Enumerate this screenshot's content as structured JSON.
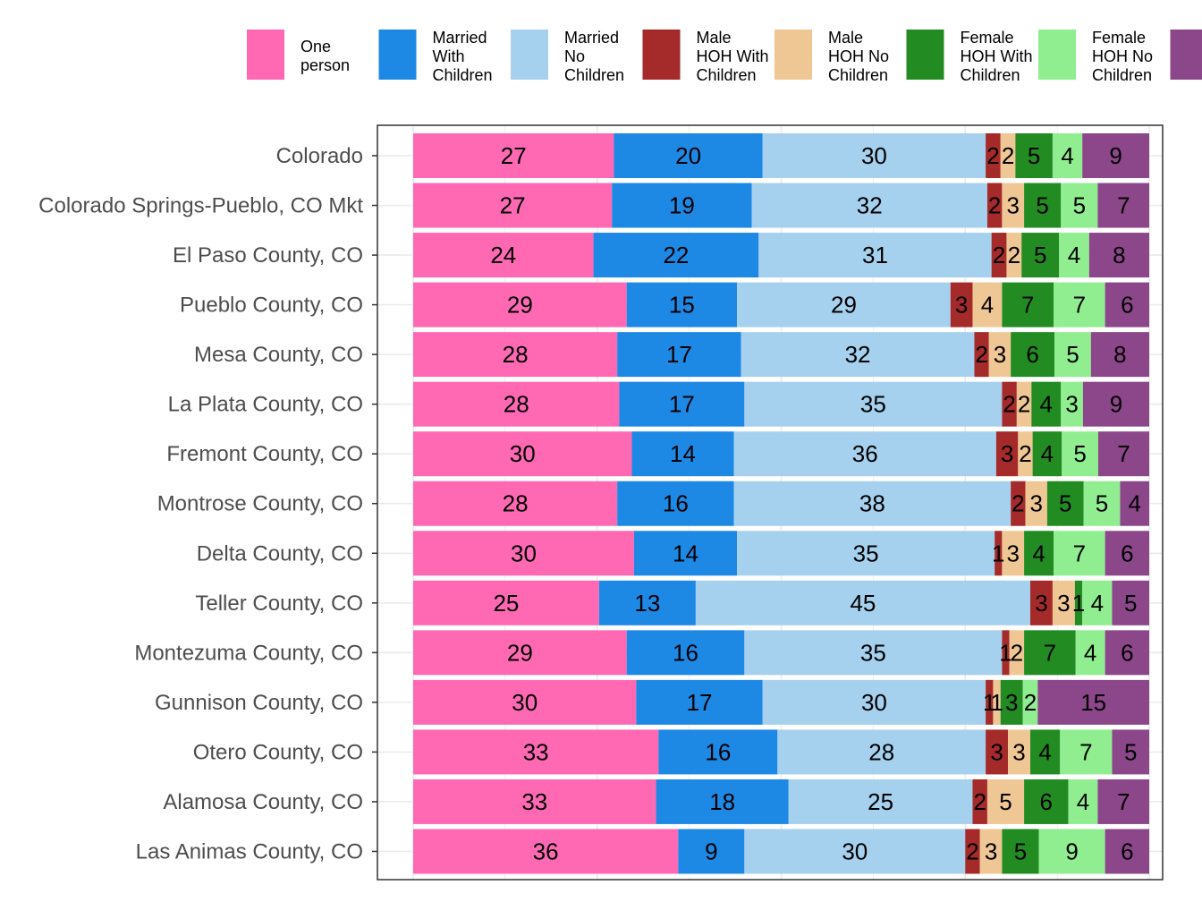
{
  "chart_data": {
    "type": "bar",
    "orientation": "horizontal",
    "stacked": true,
    "legend_position": "top",
    "grid": true,
    "categories": [
      "Colorado",
      "Colorado Springs-Pueblo, CO Mkt",
      "El Paso County, CO",
      "Pueblo County, CO",
      "Mesa County, CO",
      "La Plata County, CO",
      "Fremont County, CO",
      "Montrose County, CO",
      "Delta County, CO",
      "Teller County, CO",
      "Montezuma County, CO",
      "Gunnison County, CO",
      "Otero County, CO",
      "Alamosa County, CO",
      "Las Animas County, CO"
    ],
    "series": [
      {
        "name": "One person",
        "legend_lines": [
          "One",
          "person"
        ],
        "color": "#ff69b4",
        "values": [
          27,
          27,
          24,
          29,
          28,
          28,
          30,
          28,
          30,
          25,
          29,
          30,
          33,
          33,
          36
        ]
      },
      {
        "name": "Married With Children",
        "legend_lines": [
          "Married",
          "With",
          "Children"
        ],
        "color": "#1e88e5",
        "values": [
          20,
          19,
          22,
          15,
          17,
          17,
          14,
          16,
          14,
          13,
          16,
          17,
          16,
          18,
          9
        ]
      },
      {
        "name": "Married No Children",
        "legend_lines": [
          "Married",
          "No",
          "Children"
        ],
        "color": "#a6d1ee",
        "values": [
          30,
          32,
          31,
          29,
          32,
          35,
          36,
          38,
          35,
          45,
          35,
          30,
          28,
          25,
          30
        ]
      },
      {
        "name": "Male HOH With Children",
        "legend_lines": [
          "Male",
          "HOH With",
          "Children"
        ],
        "color": "#a52a2a",
        "values": [
          2,
          2,
          2,
          3,
          2,
          2,
          3,
          2,
          1,
          3,
          1,
          1,
          3,
          2,
          2
        ]
      },
      {
        "name": "Male HOH No Children",
        "legend_lines": [
          "Male",
          "HOH No",
          "Children"
        ],
        "color": "#efc795",
        "values": [
          2,
          3,
          2,
          4,
          3,
          2,
          2,
          3,
          3,
          3,
          2,
          1,
          3,
          5,
          3
        ]
      },
      {
        "name": "Female HOH With Children",
        "legend_lines": [
          "Female",
          "HOH With",
          "Children"
        ],
        "color": "#228b22",
        "values": [
          5,
          5,
          5,
          7,
          6,
          4,
          4,
          5,
          4,
          1,
          7,
          3,
          4,
          6,
          5
        ]
      },
      {
        "name": "Female HOH No Children",
        "legend_lines": [
          "Female",
          "HOH No",
          "Children"
        ],
        "color": "#90ee90",
        "values": [
          4,
          5,
          4,
          7,
          5,
          3,
          5,
          5,
          7,
          4,
          4,
          2,
          7,
          4,
          9
        ]
      },
      {
        "name": "",
        "legend_lines": [],
        "color": "#8b4789",
        "values": [
          9,
          7,
          8,
          6,
          8,
          9,
          7,
          4,
          6,
          5,
          6,
          15,
          5,
          7,
          6
        ]
      }
    ]
  }
}
